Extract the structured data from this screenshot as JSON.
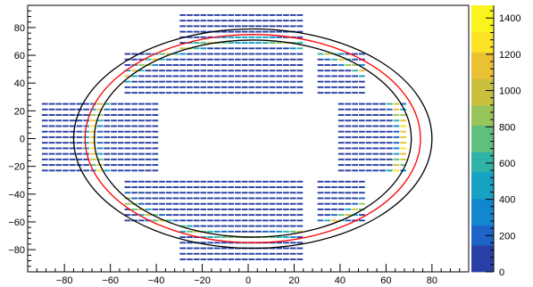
{
  "chart_data": {
    "type": "heatmap",
    "title": "",
    "xlabel": "",
    "ylabel": "",
    "xlim": [
      -96,
      96
    ],
    "ylim": [
      -96,
      96
    ],
    "x_ticks": [
      -80,
      -60,
      -40,
      -20,
      0,
      20,
      40,
      60,
      80
    ],
    "y_ticks": [
      -80,
      -60,
      -40,
      -20,
      0,
      20,
      40,
      60,
      80
    ],
    "colorbar": {
      "range": [
        0,
        1470
      ],
      "ticks": [
        0,
        200,
        400,
        600,
        800,
        1000,
        1200,
        1400
      ],
      "palette": [
        "#2a3fa5",
        "#1e63c8",
        "#1287d0",
        "#17a2c4",
        "#2fb3a6",
        "#5fbf7f",
        "#98c45c",
        "#c9c03e",
        "#ebc134",
        "#fde325",
        "#f9f51c"
      ]
    },
    "bin_size": [
      3,
      2
    ],
    "cell_value_typical": 20,
    "occupied_regions": [
      {
        "x_range": [
          -90,
          -64
        ],
        "y_range": [
          -25,
          25
        ]
      },
      {
        "x_range": [
          -64,
          -40
        ],
        "y_range": [
          -25,
          25
        ]
      },
      {
        "x_range": [
          -55,
          -25
        ],
        "y_range": [
          30,
          62
        ]
      },
      {
        "x_range": [
          -55,
          -25
        ],
        "y_range": [
          -62,
          -30
        ]
      },
      {
        "x_range": [
          -30,
          25
        ],
        "y_range": [
          30,
          92
        ]
      },
      {
        "x_range": [
          -30,
          25
        ],
        "y_range": [
          -90,
          -30
        ]
      },
      {
        "x_range": [
          30,
          52
        ],
        "y_range": [
          30,
          62
        ]
      },
      {
        "x_range": [
          30,
          52
        ],
        "y_range": [
          -62,
          -30
        ]
      },
      {
        "x_range": [
          38,
          68
        ],
        "y_range": [
          -25,
          25
        ]
      }
    ],
    "ring": {
      "center": [
        0,
        0
      ],
      "rx": 68,
      "ry": 71,
      "peak_value": 1300
    },
    "fit_ellipses": [
      {
        "color": "#000000",
        "center": [
          2,
          0
        ],
        "rx": 78,
        "ry": 79
      },
      {
        "color": "#ff0000",
        "center": [
          2,
          0
        ],
        "rx": 73,
        "ry": 75
      },
      {
        "color": "#000000",
        "center": [
          2,
          0
        ],
        "rx": 69,
        "ry": 71
      }
    ]
  }
}
